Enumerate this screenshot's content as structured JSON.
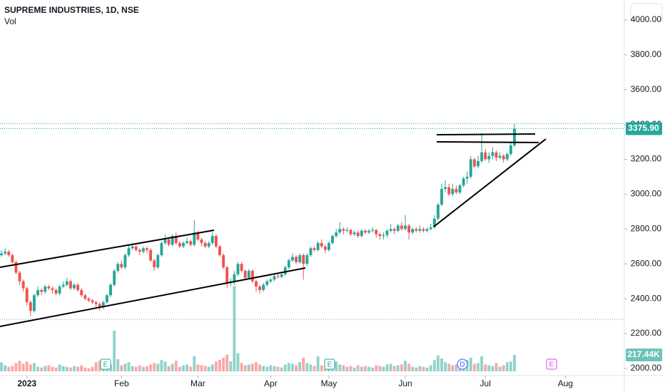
{
  "chart_data": {
    "type": "candlestick",
    "title": "SUPREME INDUSTRIES, 1D, NSE",
    "volume_title": "Vol",
    "up_color": "#26a69a",
    "down_color": "#ef5350",
    "open": [
      2650,
      2660,
      2670,
      2650,
      2610,
      2550,
      2500,
      2460,
      2380,
      2330,
      2420,
      2450,
      2440,
      2470,
      2460,
      2450,
      2430,
      2470,
      2480,
      2500,
      2460,
      2480,
      2450,
      2420,
      2400,
      2390,
      2380,
      2370,
      2350,
      2380,
      2420,
      2480,
      2560,
      2600,
      2580,
      2650,
      2690,
      2700,
      2680,
      2670,
      2690,
      2680,
      2620,
      2580,
      2650,
      2720,
      2740,
      2710,
      2760,
      2720,
      2700,
      2720,
      2730,
      2710,
      2780,
      2740,
      2720,
      2700,
      2720,
      2760,
      2700,
      2650,
      2580,
      2490,
      2500,
      2540,
      2600,
      2560,
      2520,
      2560,
      2500,
      2470,
      2450,
      2480,
      2500,
      2510,
      2530,
      2525,
      2540,
      2580,
      2620,
      2640,
      2610,
      2650,
      2600,
      2650,
      2690,
      2680,
      2720,
      2700,
      2680,
      2720,
      2760,
      2780,
      2800,
      2790,
      2795,
      2770,
      2780,
      2760,
      2790,
      2780,
      2790,
      2795,
      2770,
      2760,
      2765,
      2790,
      2800,
      2790,
      2820,
      2800,
      2820,
      2780,
      2800,
      2790,
      2800,
      2790,
      2800,
      2810,
      2860,
      2940,
      3030,
      3040,
      3000,
      3030,
      3010,
      3050,
      3090,
      3100,
      3200,
      3160,
      3190,
      3240,
      3200,
      3220,
      3240,
      3210,
      3220,
      3200,
      3230,
      3280
    ],
    "high": [
      2680,
      2690,
      2680,
      2660,
      2620,
      2560,
      2510,
      2470,
      2390,
      2430,
      2470,
      2460,
      2480,
      2480,
      2470,
      2460,
      2480,
      2500,
      2520,
      2510,
      2490,
      2490,
      2460,
      2430,
      2410,
      2400,
      2390,
      2380,
      2390,
      2430,
      2490,
      2570,
      2610,
      2620,
      2660,
      2710,
      2720,
      2710,
      2690,
      2700,
      2700,
      2690,
      2630,
      2660,
      2730,
      2770,
      2750,
      2770,
      2780,
      2730,
      2730,
      2750,
      2740,
      2850,
      2790,
      2750,
      2730,
      2730,
      2780,
      2770,
      2710,
      2660,
      2590,
      2520,
      2560,
      2610,
      2610,
      2570,
      2570,
      2570,
      2510,
      2480,
      2490,
      2510,
      2520,
      2540,
      2545,
      2550,
      2590,
      2630,
      2660,
      2650,
      2660,
      2660,
      2660,
      2700,
      2700,
      2730,
      2740,
      2710,
      2730,
      2770,
      2800,
      2840,
      2810,
      2810,
      2800,
      2790,
      2790,
      2800,
      2800,
      2800,
      2810,
      2800,
      2780,
      2780,
      2800,
      2830,
      2810,
      2830,
      2840,
      2880,
      2830,
      2810,
      2810,
      2820,
      2810,
      2810,
      2830,
      2880,
      2950,
      3060,
      3080,
      3060,
      3060,
      3050,
      3060,
      3100,
      3130,
      3220,
      3210,
      3220,
      3350,
      3260,
      3240,
      3270,
      3250,
      3240,
      3230,
      3240,
      3300,
      3405
    ],
    "low": [
      2640,
      2650,
      2640,
      2600,
      2540,
      2480,
      2440,
      2360,
      2300,
      2320,
      2410,
      2420,
      2430,
      2450,
      2430,
      2420,
      2420,
      2460,
      2470,
      2450,
      2450,
      2440,
      2410,
      2390,
      2380,
      2370,
      2350,
      2330,
      2340,
      2370,
      2410,
      2470,
      2550,
      2570,
      2570,
      2640,
      2680,
      2670,
      2650,
      2660,
      2660,
      2610,
      2560,
      2570,
      2640,
      2710,
      2700,
      2700,
      2710,
      2690,
      2690,
      2710,
      2700,
      2700,
      2730,
      2700,
      2690,
      2690,
      2710,
      2690,
      2640,
      2570,
      2460,
      2470,
      2480,
      2530,
      2550,
      2510,
      2510,
      2490,
      2440,
      2430,
      2440,
      2470,
      2490,
      2500,
      2515,
      2520,
      2530,
      2570,
      2610,
      2600,
      2600,
      2510,
      2590,
      2640,
      2670,
      2670,
      2690,
      2660,
      2670,
      2710,
      2750,
      2770,
      2770,
      2780,
      2760,
      2760,
      2750,
      2750,
      2770,
      2770,
      2780,
      2750,
      2740,
      2740,
      2750,
      2780,
      2770,
      2780,
      2790,
      2790,
      2740,
      2770,
      2780,
      2780,
      2780,
      2780,
      2790,
      2800,
      2850,
      2930,
      3010,
      2990,
      2990,
      3000,
      3000,
      3040,
      3060,
      3090,
      3150,
      3150,
      3180,
      3190,
      3180,
      3200,
      3190,
      3200,
      3180,
      3190,
      3220,
      3270
    ],
    "close": [
      2660,
      2670,
      2650,
      2610,
      2550,
      2500,
      2460,
      2380,
      2330,
      2420,
      2450,
      2440,
      2470,
      2460,
      2450,
      2430,
      2470,
      2480,
      2500,
      2460,
      2480,
      2450,
      2420,
      2400,
      2390,
      2380,
      2370,
      2350,
      2380,
      2420,
      2480,
      2560,
      2600,
      2580,
      2650,
      2690,
      2700,
      2680,
      2670,
      2690,
      2680,
      2620,
      2580,
      2650,
      2720,
      2740,
      2710,
      2760,
      2720,
      2700,
      2720,
      2730,
      2710,
      2780,
      2740,
      2720,
      2700,
      2720,
      2760,
      2700,
      2650,
      2580,
      2490,
      2500,
      2540,
      2600,
      2560,
      2520,
      2560,
      2500,
      2470,
      2450,
      2480,
      2500,
      2510,
      2530,
      2525,
      2540,
      2580,
      2620,
      2640,
      2610,
      2650,
      2600,
      2650,
      2690,
      2680,
      2720,
      2700,
      2680,
      2720,
      2760,
      2780,
      2800,
      2790,
      2795,
      2770,
      2780,
      2760,
      2790,
      2780,
      2790,
      2795,
      2770,
      2760,
      2765,
      2790,
      2800,
      2790,
      2820,
      2800,
      2820,
      2780,
      2800,
      2790,
      2800,
      2790,
      2800,
      2810,
      2860,
      2940,
      3030,
      3040,
      3000,
      3030,
      3010,
      3050,
      3090,
      3100,
      3200,
      3160,
      3190,
      3240,
      3200,
      3220,
      3240,
      3210,
      3220,
      3200,
      3230,
      3280,
      3375.9
    ],
    "volume": [
      120,
      80,
      60,
      70,
      110,
      140,
      100,
      130,
      90,
      110,
      60,
      50,
      70,
      80,
      60,
      50,
      90,
      70,
      60,
      50,
      70,
      60,
      80,
      50,
      40,
      60,
      120,
      140,
      70,
      110,
      90,
      540,
      160,
      80,
      100,
      120,
      70,
      60,
      80,
      60,
      70,
      90,
      110,
      100,
      150,
      130,
      70,
      100,
      140,
      60,
      80,
      90,
      60,
      200,
      90,
      80,
      70,
      60,
      90,
      130,
      150,
      180,
      220,
      130,
      1130,
      240,
      110,
      80,
      90,
      100,
      120,
      90,
      70,
      60,
      80,
      70,
      60,
      50,
      90,
      110,
      100,
      80,
      120,
      180,
      110,
      90,
      70,
      200,
      80,
      70,
      110,
      150,
      130,
      90,
      80,
      60,
      70,
      50,
      80,
      60,
      70,
      60,
      50,
      80,
      70,
      60,
      90,
      100,
      70,
      80,
      90,
      140,
      100,
      60,
      50,
      70,
      60,
      50,
      80,
      150,
      210,
      170,
      120,
      100,
      80,
      90,
      110,
      130,
      150,
      180,
      100,
      110,
      200,
      90,
      80,
      70,
      110,
      60,
      80,
      120,
      130,
      217.44
    ],
    "price_line": {
      "value": 3375.9,
      "label": "3375.90"
    },
    "volume_marker": {
      "value": 217.44,
      "label": "217.44K"
    },
    "ylim": [
      1959,
      4114
    ],
    "yticks": [
      {
        "value": 2000,
        "label": "2000.00"
      },
      {
        "value": 2200,
        "label": "2200.00"
      },
      {
        "value": 2400,
        "label": "2400.00"
      },
      {
        "value": 2600,
        "label": "2600.00"
      },
      {
        "value": 2800,
        "label": "2800.00"
      },
      {
        "value": 3000,
        "label": "3000.00"
      },
      {
        "value": 3200,
        "label": "3200.00"
      },
      {
        "value": 3400,
        "label": "3400.00"
      },
      {
        "value": 3600,
        "label": "3600.00"
      },
      {
        "value": 3800,
        "label": "3800.00"
      },
      {
        "value": 4000,
        "label": "4000.00"
      }
    ],
    "xlim": [
      -0.4,
      171.2
    ],
    "xticks": [
      {
        "value": 7,
        "label": "2023"
      },
      {
        "value": 33,
        "label": "Feb"
      },
      {
        "value": 54,
        "label": "Mar"
      },
      {
        "value": 74,
        "label": "Apr"
      },
      {
        "value": 90,
        "label": "May"
      },
      {
        "value": 111,
        "label": "Jun"
      },
      {
        "value": 133,
        "label": "Jul"
      },
      {
        "value": 155,
        "label": "Aug"
      }
    ],
    "events": [
      "E",
      "E",
      "D",
      "E"
    ]
  }
}
